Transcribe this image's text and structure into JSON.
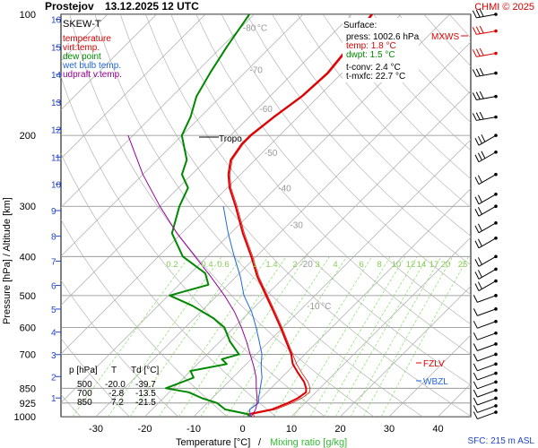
{
  "header": {
    "station": "Prostejov",
    "datetime": "13.12.2025 12 UTC",
    "copyright": "CHMI © 2025"
  },
  "legend": {
    "title": "SKEW-T",
    "items": [
      {
        "label": "temperature",
        "color": "#dd0000"
      },
      {
        "label": "virt.temp.",
        "color": "#dd0000"
      },
      {
        "label": "dew point",
        "color": "#008800"
      },
      {
        "label": "wet bulb temp.",
        "color": "#2266dd"
      },
      {
        "label": "udpraft v.temp.",
        "color": "#990099"
      }
    ]
  },
  "surface_box": {
    "title": "Surface:",
    "press": "press: 1002.6 hPa",
    "temp": "temp: 1.8 °C",
    "dwpt": "dwpt: 1.5 °C",
    "tconv": "t-conv: 2.4 °C",
    "tmxfc": "t-mxfc: 22.7 °C"
  },
  "table": {
    "headers": [
      "p [hPa]",
      "T",
      "Td [°C]"
    ],
    "rows": [
      [
        "500",
        "-20.0",
        "-39.7"
      ],
      [
        "700",
        "-2.8",
        "-13.5"
      ],
      [
        "850",
        "7.2",
        "-21.5"
      ]
    ]
  },
  "labels": {
    "tropo": "Tropo",
    "mxws": "MXWS",
    "fzlv": "FZLV",
    "wbzl": "WBZL",
    "sfc": "SFC: 215 m ASL",
    "xlabel_temp": "Temperature [°C]",
    "xlabel_sep": "/",
    "xlabel_mix": "Mixing ratio [g/kg]",
    "ylabel": "Pressure [hPa]  /  Altitude [km]"
  },
  "colors": {
    "temperature": "#dd0000",
    "dewpoint": "#008800",
    "wetbulb": "#2266dd",
    "parcel": "#990099",
    "isotherm": "#aaaaaa",
    "dry_adiabat": "#aaaaaa",
    "mixing_ratio": "#88dd66",
    "altitude": "#2244cc"
  },
  "chart_data": {
    "type": "line",
    "title": "Prostejov 13.12.2025 12 UTC",
    "xlabel": "Temperature [°C] / Mixing ratio [g/kg]",
    "ylabel": "Pressure [hPa] / Altitude [km]",
    "xlim": [
      -35,
      45
    ],
    "ylim": [
      1000,
      100
    ],
    "y_scale": "log",
    "x_ticks": [
      -30,
      -20,
      -10,
      0,
      10,
      20,
      30,
      40
    ],
    "pressure_ticks": [
      100,
      200,
      300,
      400,
      500,
      600,
      700,
      850,
      925,
      1000
    ],
    "altitude_ticks_km": [
      1,
      2,
      3,
      4,
      5,
      6,
      7,
      8,
      9,
      10,
      11,
      12,
      13,
      14,
      15,
      16
    ],
    "isotherm_labels": [
      -80,
      -70,
      -60,
      -50,
      -40,
      -30,
      -20,
      -10
    ],
    "mixing_ratio_labels": [
      "0.2",
      "0.4",
      "0.6",
      "1",
      "1.4",
      "2",
      "3",
      "4",
      "6",
      "8",
      "10",
      "12",
      "14",
      "17",
      "20",
      "25"
    ],
    "series": [
      {
        "name": "temperature",
        "points": [
          [
            1002,
            1.8
          ],
          [
            985,
            0.8
          ],
          [
            960,
            4.5
          ],
          [
            925,
            6.5
          ],
          [
            900,
            7.5
          ],
          [
            870,
            8.0
          ],
          [
            850,
            7.2
          ],
          [
            820,
            5.5
          ],
          [
            780,
            2.5
          ],
          [
            740,
            -0.5
          ],
          [
            700,
            -2.8
          ],
          [
            650,
            -6.5
          ],
          [
            600,
            -10.5
          ],
          [
            550,
            -15.0
          ],
          [
            500,
            -20.0
          ],
          [
            450,
            -25.5
          ],
          [
            400,
            -31.0
          ],
          [
            350,
            -37.5
          ],
          [
            300,
            -44.5
          ],
          [
            270,
            -49.5
          ],
          [
            250,
            -52.5
          ],
          [
            230,
            -55.0
          ],
          [
            210,
            -56.0
          ],
          [
            200,
            -56.0
          ],
          [
            180,
            -55.0
          ],
          [
            160,
            -53.5
          ],
          [
            140,
            -53.0
          ],
          [
            120,
            -54.0
          ],
          [
            110,
            -55.0
          ],
          [
            100,
            -56.0
          ]
        ]
      },
      {
        "name": "dew point",
        "points": [
          [
            1002,
            1.5
          ],
          [
            985,
            0.5
          ],
          [
            960,
            -5.0
          ],
          [
            925,
            -8.0
          ],
          [
            900,
            -12.0
          ],
          [
            870,
            -16.0
          ],
          [
            850,
            -21.5
          ],
          [
            800,
            -18.0
          ],
          [
            770,
            -20.0
          ],
          [
            740,
            -14.0
          ],
          [
            720,
            -16.0
          ],
          [
            700,
            -13.5
          ],
          [
            650,
            -18.0
          ],
          [
            600,
            -22.0
          ],
          [
            570,
            -26.0
          ],
          [
            530,
            -33.0
          ],
          [
            500,
            -39.7
          ],
          [
            470,
            -34.0
          ],
          [
            440,
            -37.0
          ],
          [
            400,
            -45.0
          ],
          [
            350,
            -52.0
          ],
          [
            300,
            -56.0
          ],
          [
            270,
            -58.0
          ],
          [
            250,
            -62.0
          ],
          [
            230,
            -64.0
          ],
          [
            200,
            -70.0
          ],
          [
            180,
            -72.0
          ],
          [
            160,
            -75.0
          ],
          [
            140,
            -77.0
          ],
          [
            120,
            -79.0
          ],
          [
            100,
            -81.0
          ]
        ]
      },
      {
        "name": "wet bulb temp.",
        "points": [
          [
            1002,
            1.6
          ],
          [
            960,
            0.0
          ],
          [
            925,
            0.5
          ],
          [
            900,
            -0.5
          ],
          [
            870,
            -1.5
          ],
          [
            850,
            -2.2
          ],
          [
            800,
            -4.0
          ],
          [
            750,
            -6.5
          ],
          [
            700,
            -8.8
          ],
          [
            650,
            -12.0
          ],
          [
            600,
            -15.5
          ],
          [
            550,
            -19.5
          ],
          [
            500,
            -24.5
          ],
          [
            450,
            -29.0
          ],
          [
            400,
            -34.5
          ],
          [
            350,
            -40.5
          ],
          [
            300,
            -47.0
          ]
        ]
      },
      {
        "name": "udpraft v.temp.",
        "points": [
          [
            1002,
            1.8
          ],
          [
            960,
            1.2
          ],
          [
            925,
            0.2
          ],
          [
            900,
            -0.8
          ],
          [
            850,
            -3.0
          ],
          [
            800,
            -5.2
          ],
          [
            750,
            -8.0
          ],
          [
            700,
            -11.2
          ],
          [
            650,
            -14.6
          ],
          [
            600,
            -18.5
          ],
          [
            550,
            -23.0
          ],
          [
            500,
            -28.5
          ],
          [
            450,
            -35.0
          ],
          [
            400,
            -42.5
          ],
          [
            350,
            -51.0
          ],
          [
            300,
            -60.0
          ],
          [
            250,
            -70.0
          ],
          [
            200,
            -81.0
          ]
        ]
      }
    ]
  }
}
